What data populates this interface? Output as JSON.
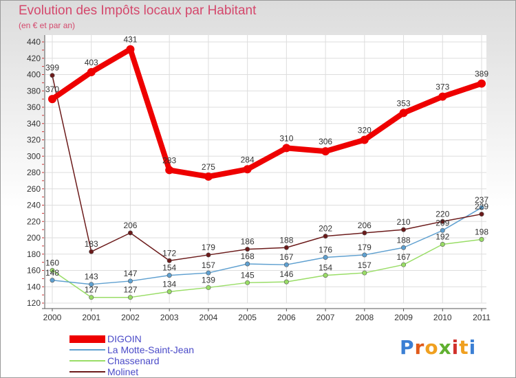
{
  "chart_data": {
    "type": "line",
    "title": "Evolution des Impôts locaux par Habitant",
    "subtitle": "(en € et par an)",
    "xlabel": "",
    "ylabel": "",
    "ylim": [
      120,
      440
    ],
    "yticks": [
      120,
      140,
      160,
      180,
      200,
      220,
      240,
      260,
      280,
      300,
      320,
      340,
      360,
      380,
      400,
      420,
      440
    ],
    "grid": true,
    "legend_position": "bottom-left",
    "x": [
      "2000",
      "2001",
      "2002",
      "2003",
      "2004",
      "2005",
      "2006",
      "2007",
      "2008",
      "2009",
      "2010",
      "2011"
    ],
    "series": [
      {
        "name": "DIGOIN",
        "color": "#ee0000",
        "values": [
          370,
          403,
          431,
          283,
          275,
          284,
          310,
          306,
          320,
          353,
          373,
          389
        ]
      },
      {
        "name": "La Motte-Saint-Jean",
        "color": "#5fa0d0",
        "values": [
          148,
          143,
          147,
          154,
          157,
          168,
          167,
          176,
          179,
          188,
          209,
          237
        ]
      },
      {
        "name": "Chassenard",
        "color": "#99dd66",
        "values": [
          160,
          127,
          127,
          134,
          139,
          145,
          146,
          154,
          157,
          167,
          192,
          198
        ]
      },
      {
        "name": "Molinet",
        "color": "#6b1a1a",
        "values": [
          399,
          183,
          206,
          172,
          179,
          186,
          188,
          202,
          206,
          210,
          220,
          229
        ]
      }
    ]
  },
  "logo": {
    "letters": [
      "P",
      "r",
      "o",
      "x",
      "i",
      "t",
      "i"
    ],
    "colors": [
      "#3b7fd4",
      "#e05a1a",
      "#f0a020",
      "#60b030",
      "#d0302a",
      "#f0a020",
      "#3b7fd4"
    ]
  }
}
